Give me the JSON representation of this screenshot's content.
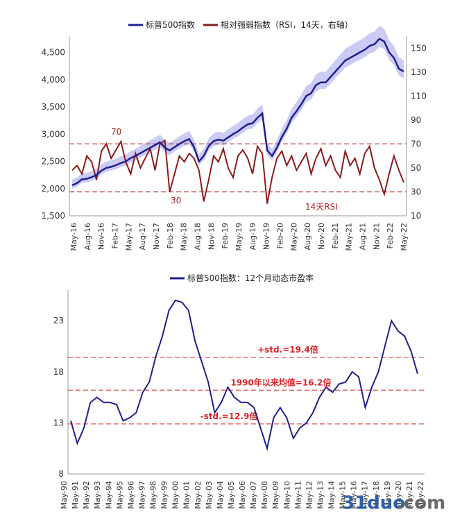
{
  "chart_data": [
    {
      "type": "line",
      "legend": [
        {
          "name": "标普500指数",
          "color": "#1f1f8f"
        },
        {
          "name": "相对强弱指数（RSI，14天，右轴）",
          "color": "#8b1a1a"
        }
      ],
      "legend_position": "top",
      "yleft_ticks": [
        "1,500",
        "2,000",
        "2,500",
        "3,000",
        "3,500",
        "4,000",
        "4,500"
      ],
      "yleft_range": [
        1500,
        4800
      ],
      "yright_ticks": [
        "10",
        "30",
        "50",
        "70",
        "90",
        "110",
        "130",
        "150"
      ],
      "yright_range": [
        10,
        160
      ],
      "x_ticks": [
        "May-16",
        "Aug-16",
        "Nov-16",
        "Feb-17",
        "May-17",
        "Aug-17",
        "Nov-17",
        "Feb-18",
        "May-18",
        "Aug-18",
        "Nov-18",
        "Feb-19",
        "May-19",
        "Aug-19",
        "Nov-19",
        "Feb-20",
        "May-20",
        "Aug-20",
        "Nov-20",
        "Feb-21",
        "May-21",
        "Aug-21",
        "Nov-21",
        "Feb-22",
        "May-22"
      ],
      "reference_lines_right_axis": [
        70,
        30
      ],
      "annotations": [
        "70",
        "30",
        "14天RSI"
      ],
      "series": [
        {
          "name": "标普500指数",
          "axis": "left",
          "values": [
            2060,
            2100,
            2170,
            2180,
            2210,
            2250,
            2330,
            2380,
            2400,
            2430,
            2470,
            2500,
            2560,
            2600,
            2650,
            2700,
            2750,
            2800,
            2850,
            2750,
            2700,
            2760,
            2820,
            2870,
            2910,
            2760,
            2500,
            2600,
            2780,
            2870,
            2900,
            2880,
            2940,
            3000,
            3050,
            3120,
            3180,
            3200,
            3300,
            3380,
            2700,
            2600,
            2750,
            2950,
            3100,
            3300,
            3420,
            3550,
            3700,
            3750,
            3900,
            3950,
            3950,
            4050,
            4150,
            4250,
            4350,
            4400,
            4450,
            4500,
            4550,
            4620,
            4650,
            4750,
            4700,
            4500,
            4400,
            4200,
            4150
          ]
        },
        {
          "name": "相对强弱指数（RSI，14天，右轴）",
          "axis": "right",
          "values": [
            48,
            52,
            45,
            60,
            55,
            40,
            64,
            70,
            58,
            65,
            72,
            55,
            45,
            62,
            50,
            58,
            66,
            48,
            70,
            73,
            30,
            45,
            60,
            55,
            62,
            58,
            48,
            22,
            40,
            60,
            55,
            66,
            50,
            42,
            60,
            65,
            58,
            45,
            68,
            62,
            20,
            42,
            58,
            64,
            52,
            60,
            48,
            55,
            62,
            45,
            58,
            66,
            52,
            60,
            48,
            42,
            64,
            52,
            58,
            45,
            62,
            68,
            50,
            40,
            28,
            45,
            60,
            48,
            38
          ]
        }
      ],
      "band_note": "shaded band around S&P 500 line"
    },
    {
      "type": "line",
      "legend": [
        {
          "name": "标普500指数：12个月动态市盈率",
          "color": "#1f1f8f"
        }
      ],
      "legend_position": "top",
      "y_ticks": [
        "8",
        "13",
        "18",
        "23"
      ],
      "y_range": [
        8,
        26
      ],
      "x_ticks": [
        "May-90",
        "May-91",
        "May-92",
        "May-93",
        "May-94",
        "May-95",
        "May-96",
        "May-97",
        "May-98",
        "May-99",
        "May-00",
        "May-01",
        "May-02",
        "May-03",
        "May-04",
        "May-05",
        "May-06",
        "May-07",
        "May-08",
        "May-09",
        "May-10",
        "May-11",
        "May-12",
        "May-13",
        "May-14",
        "May-15",
        "May-16",
        "May-17",
        "May-18",
        "May-19",
        "May-20",
        "May-21",
        "May-22"
      ],
      "reference_lines": [
        {
          "label": "+std.=19.4倍",
          "value": 19.4,
          "color": "#e05050"
        },
        {
          "label": "1990年以来均值=16.2倍",
          "value": 16.2,
          "color": "#e05050"
        },
        {
          "label": "-std.=12.9倍",
          "value": 12.9,
          "color": "#e05050"
        }
      ],
      "series": [
        {
          "name": "标普500指数：12个月动态市盈率",
          "values": [
            13.2,
            11.0,
            12.5,
            15.0,
            15.5,
            15.0,
            15.0,
            14.8,
            13.2,
            13.5,
            14.0,
            16.0,
            17.0,
            19.5,
            21.5,
            24.0,
            25.0,
            24.8,
            24.0,
            21.0,
            19.0,
            17.0,
            14.0,
            15.0,
            16.5,
            15.5,
            15.0,
            15.0,
            14.5,
            12.5,
            10.5,
            13.5,
            14.5,
            13.5,
            11.5,
            12.5,
            13.0,
            14.0,
            15.5,
            16.5,
            16.0,
            16.8,
            17.0,
            18.0,
            17.5,
            14.5,
            16.5,
            18.0,
            20.5,
            23.0,
            22.0,
            21.5,
            20.0,
            17.8
          ]
        }
      ]
    }
  ],
  "watermark": {
    "part1": "31duo",
    "part2": ".com"
  }
}
